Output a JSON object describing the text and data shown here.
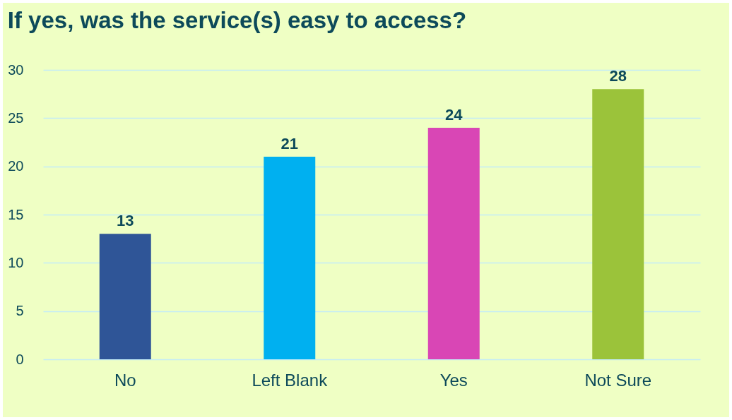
{
  "chart_data": {
    "type": "bar",
    "title": "If yes, was the service(s) easy to access?",
    "categories": [
      "No",
      "Left Blank",
      "Yes",
      "Not Sure"
    ],
    "values": [
      13,
      21,
      24,
      28
    ],
    "colors": [
      "#2f5597",
      "#00b0f0",
      "#d946b5",
      "#9bc33a"
    ],
    "ylim": [
      0,
      30
    ],
    "yticks": [
      0,
      5,
      10,
      15,
      20,
      25,
      30
    ],
    "grid": "y",
    "data_labels": true,
    "legend": false
  }
}
